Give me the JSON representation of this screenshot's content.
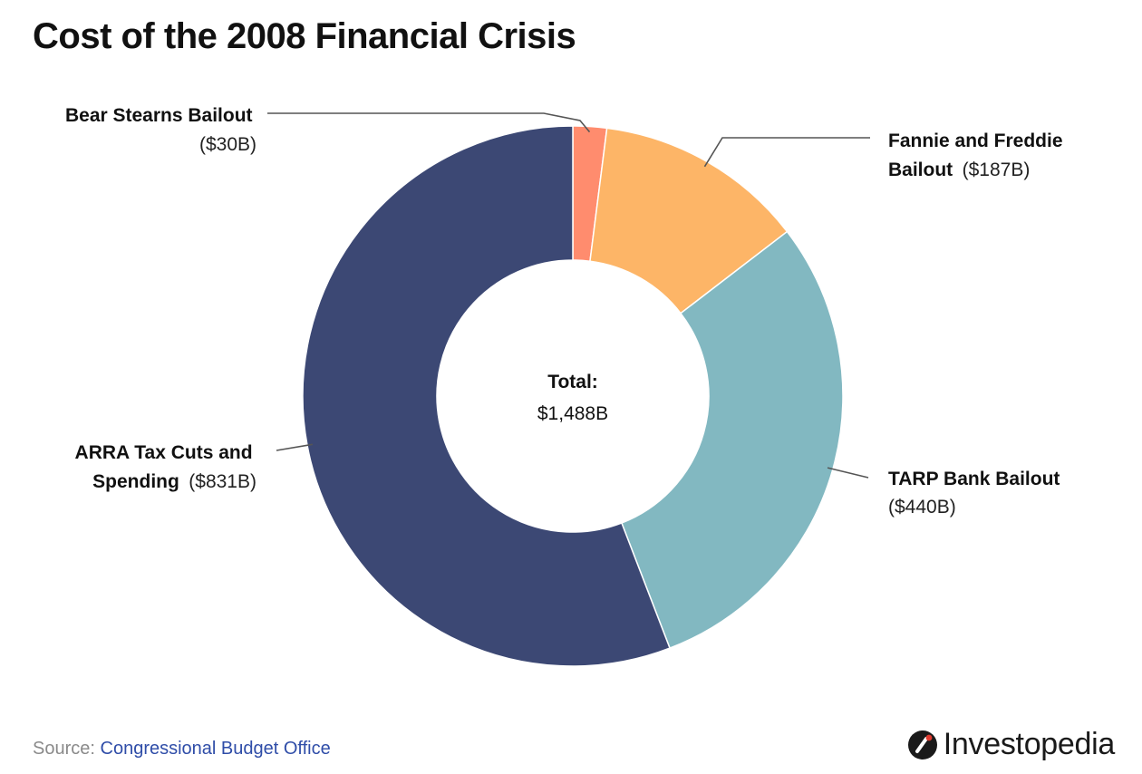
{
  "header": {
    "title": "Cost of the 2008 Financial Crisis"
  },
  "chart_data": {
    "type": "pie",
    "variant": "donut",
    "title": "Cost of the 2008 Financial Crisis",
    "unit": "$B",
    "total_label": "Total:",
    "total_value": "$1,488B",
    "slices": [
      {
        "name_line1": "Bear Stearns Bailout",
        "name_line2": "",
        "value": 30,
        "value_label": "($30B)",
        "color": "#ff8c6e"
      },
      {
        "name_line1": "Fannie and Freddie",
        "name_line2": "Bailout",
        "value": 187,
        "value_label": "($187B)",
        "color": "#fdb567"
      },
      {
        "name_line1": "TARP Bank Bailout",
        "name_line2": "",
        "value": 440,
        "value_label": "($440B)",
        "color": "#82b8c1"
      },
      {
        "name_line1": "ARRA Tax Cuts and",
        "name_line2": "Spending",
        "value": 831,
        "value_label": "($831B)",
        "color": "#3c4874"
      }
    ]
  },
  "footer": {
    "source_prefix": "Source:",
    "source_name": "Congressional Budget Office",
    "brand": "Investopedia"
  },
  "colors": {
    "brand_red": "#e03a2f",
    "brand_dark": "#1a1a1a",
    "source_link": "#2f4da8"
  }
}
